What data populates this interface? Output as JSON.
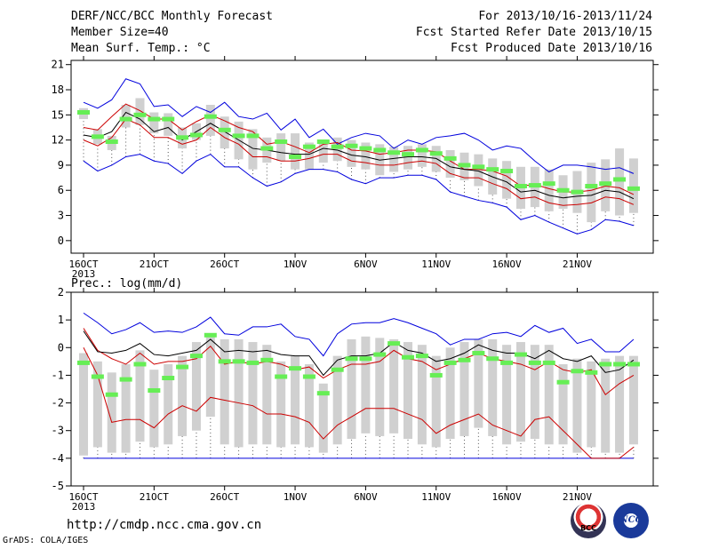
{
  "header": {
    "title": "DERF/NCC/BCC Monthly Forecast",
    "member_size": "Member Size=40",
    "variable_top": "Mean Surf. Temp.: °C",
    "forecast_range": "For 2013/10/16-2013/11/24",
    "started_date": "Fcst Started Refer Date 2013/10/15",
    "produced_date": "Fcst Produced Date 2013/10/16"
  },
  "variable_bottom": "Prec.: log(mm/d)",
  "footer": {
    "url": "http://cmdp.ncc.cma.gov.cn",
    "credit": "GrADS: COLA/IGES",
    "logo1_text": "BCC",
    "logo2_text": "NCC"
  },
  "colors": {
    "max_min": "#0000dd",
    "spread": "#cc0000",
    "mean": "#000000",
    "median": "#66ee55",
    "box": "#d0d0d0"
  },
  "x_ticks": [
    "16OCT",
    "21OCT",
    "26OCT",
    "1NOV",
    "6NOV",
    "11NOV",
    "16NOV",
    "21NOV"
  ],
  "x_sub": "2013",
  "chart_data": [
    {
      "type": "line",
      "title": "Mean Surf. Temp.: °C",
      "ylim": [
        -1.5,
        21.5
      ],
      "yticks": [
        0,
        3,
        6,
        9,
        12,
        15,
        18,
        21
      ],
      "days": 40,
      "series": [
        {
          "key": "max",
          "values": [
            16.5,
            15.8,
            16.8,
            19.3,
            18.7,
            16,
            16.2,
            14.8,
            16,
            15.3,
            16.5,
            14.8,
            14.5,
            15.2,
            13.2,
            14.5,
            12.3,
            13.3,
            11.5,
            12.3,
            12.8,
            12.5,
            11,
            12,
            11.5,
            12.3,
            12.5,
            12.8,
            12,
            10.8,
            11.3,
            11,
            9.5,
            8.2,
            9,
            9,
            8.8,
            8.5,
            8.7,
            8
          ]
        },
        {
          "key": "upper",
          "values": [
            13.5,
            13.2,
            14.8,
            16.3,
            15.5,
            14.5,
            14.5,
            13.2,
            14.2,
            15,
            14.3,
            13.5,
            13,
            11.5,
            11.8,
            11.2,
            10.5,
            11.5,
            11.7,
            10.8,
            10.7,
            10.3,
            10.5,
            10.8,
            10.8,
            10.6,
            9.5,
            8.5,
            8.5,
            8.3,
            7.7,
            6.5,
            6.7,
            6.2,
            5.8,
            5.8,
            6,
            6.5,
            6.3,
            5.5
          ]
        },
        {
          "key": "mean",
          "values": [
            12.6,
            12.3,
            13,
            15.3,
            14.5,
            13,
            13.5,
            12,
            13,
            14,
            13,
            12,
            11,
            10.8,
            10.5,
            10.3,
            10.3,
            11,
            10.8,
            10.2,
            10,
            9.6,
            9.8,
            10,
            10,
            9.8,
            8.8,
            8.5,
            8.3,
            7.6,
            7,
            5.8,
            6,
            5.4,
            5.1,
            5.3,
            5.4,
            6,
            5.8,
            5
          ]
        },
        {
          "key": "lower",
          "values": [
            12,
            11.3,
            12.3,
            14.5,
            13.8,
            12.3,
            12.3,
            11.5,
            12,
            13.5,
            12.3,
            11.5,
            10,
            10,
            9.5,
            9.5,
            9.8,
            10.3,
            10.3,
            9.5,
            9.3,
            9,
            9,
            9.3,
            9.5,
            9.2,
            8,
            7.5,
            7.5,
            6.8,
            6.2,
            5,
            5.2,
            4.5,
            4.2,
            4.3,
            4.5,
            5.2,
            5,
            4.3
          ]
        },
        {
          "key": "min",
          "values": [
            9.5,
            8.3,
            9,
            10,
            10.3,
            9.5,
            9.2,
            8,
            9.5,
            10.3,
            8.8,
            8.8,
            7.5,
            6.5,
            7,
            8,
            8.5,
            8.5,
            8.2,
            7.3,
            6.8,
            7.5,
            7.5,
            7.8,
            7.8,
            7.3,
            5.8,
            5.3,
            4.8,
            4.5,
            4,
            2.5,
            3,
            2.2,
            1.5,
            0.8,
            1.3,
            2.5,
            2.3,
            1.8
          ]
        },
        {
          "key": "median",
          "values": [
            15.3,
            12.4,
            11.8,
            14.5,
            15,
            14.5,
            14.5,
            12.3,
            12.6,
            14.8,
            13.2,
            12.5,
            12.5,
            11,
            11.8,
            10,
            11.2,
            11.8,
            11.2,
            11.3,
            11,
            10.8,
            10.5,
            10.3,
            10.8,
            10.4,
            9.8,
            9,
            8.8,
            8.5,
            8.3,
            6.5,
            6.6,
            6.8,
            6,
            5.8,
            6.5,
            6.8,
            7.3,
            6.2
          ]
        },
        {
          "key": "box_low",
          "values": [
            14.5,
            11.5,
            10.8,
            13.5,
            13.8,
            12.8,
            12.5,
            11,
            12,
            12.5,
            11,
            9.7,
            8.5,
            9.3,
            9.5,
            8.5,
            8.5,
            9.3,
            9.5,
            8.8,
            8.5,
            7.8,
            8.2,
            8.5,
            8.8,
            8.2,
            7.5,
            7.2,
            6.5,
            5.5,
            5,
            3.8,
            4,
            3.5,
            3.8,
            3.3,
            2.2,
            3.5,
            3,
            3.3
          ]
        },
        {
          "key": "box_high",
          "values": [
            15.8,
            13.3,
            12.5,
            16.2,
            17,
            15.3,
            15.2,
            13.5,
            14,
            16.2,
            14.8,
            14.2,
            13.3,
            12.3,
            12.8,
            12.8,
            11.7,
            12,
            12.3,
            12,
            11.7,
            11.5,
            11.2,
            11.3,
            11.5,
            11.3,
            10.8,
            10.5,
            10.3,
            9.8,
            9.5,
            8.8,
            8.8,
            8.5,
            7.8,
            8.3,
            9.3,
            9.7,
            11,
            9.8
          ]
        }
      ]
    },
    {
      "type": "line",
      "title": "Prec.: log(mm/d)",
      "ylim": [
        -5,
        2
      ],
      "yticks": [
        -5,
        -4,
        -3,
        -2,
        -1,
        0,
        1,
        2
      ],
      "days": 40,
      "series": [
        {
          "key": "max",
          "values": [
            1.25,
            0.9,
            0.5,
            0.65,
            0.9,
            0.55,
            0.6,
            0.55,
            0.75,
            1.1,
            0.5,
            0.45,
            0.75,
            0.75,
            0.85,
            0.4,
            0.3,
            -0.3,
            0.5,
            0.85,
            0.9,
            0.9,
            1.05,
            0.9,
            0.7,
            0.5,
            0.1,
            0.3,
            0.3,
            0.5,
            0.55,
            0.4,
            0.8,
            0.55,
            0.7,
            0.15,
            0.3,
            -0.15,
            -0.15,
            0.3
          ]
        },
        {
          "key": "mean",
          "values": [
            0.6,
            -0.15,
            -0.2,
            -0.1,
            0.15,
            -0.25,
            -0.3,
            -0.2,
            -0.1,
            0.3,
            -0.15,
            -0.1,
            -0.15,
            -0.1,
            -0.25,
            -0.3,
            -0.3,
            -1,
            -0.45,
            -0.3,
            -0.3,
            -0.2,
            0.2,
            -0.1,
            -0.2,
            -0.5,
            -0.4,
            -0.2,
            0.1,
            -0.1,
            -0.2,
            -0.2,
            -0.4,
            -0.1,
            -0.4,
            -0.5,
            -0.3,
            -0.9,
            -0.8,
            -0.45
          ]
        },
        {
          "key": "upper",
          "values": [
            0.7,
            -0.1,
            -0.4,
            -0.6,
            -0.2,
            -0.6,
            -0.5,
            -0.5,
            -0.4,
            0.05,
            -0.6,
            -0.5,
            -0.6,
            -0.5,
            -0.6,
            -0.8,
            -0.7,
            -1.1,
            -0.8,
            -0.6,
            -0.6,
            -0.5,
            -0.1,
            -0.4,
            -0.5,
            -0.8,
            -0.6,
            -0.4,
            -0.2,
            -0.4,
            -0.5,
            -0.6,
            -0.8,
            -0.5,
            -0.8,
            -0.9,
            -0.8,
            -1.7,
            -1.3,
            -1
          ]
        },
        {
          "key": "lower",
          "values": [
            0,
            -1,
            -2.7,
            -2.6,
            -2.6,
            -2.9,
            -2.4,
            -2.1,
            -2.3,
            -1.8,
            -1.9,
            -2,
            -2.1,
            -2.4,
            -2.4,
            -2.5,
            -2.7,
            -3.3,
            -2.8,
            -2.5,
            -2.2,
            -2.2,
            -2.2,
            -2.4,
            -2.6,
            -3.1,
            -2.8,
            -2.6,
            -2.4,
            -2.8,
            -3,
            -3.2,
            -2.6,
            -2.5,
            -3,
            -3.5,
            -4,
            -4,
            -4,
            -3.6
          ]
        },
        {
          "key": "min",
          "values": [
            -4,
            -4,
            -4,
            -4,
            -4,
            -4,
            -4,
            -4,
            -4,
            -4,
            -4,
            -4,
            -4,
            -4,
            -4,
            -4,
            -4,
            -4,
            -4,
            -4,
            -4,
            -4,
            -4,
            -4,
            -4,
            -4,
            -4,
            -4,
            -4,
            -4,
            -4,
            -4,
            -4,
            -4,
            -4,
            -4,
            -4,
            -4,
            -4,
            -4
          ]
        },
        {
          "key": "median",
          "values": [
            -0.55,
            -1.05,
            -1.7,
            -1.15,
            -0.6,
            -1.55,
            -1.1,
            -0.7,
            -0.3,
            0.45,
            -0.5,
            -0.5,
            -0.55,
            -0.45,
            -1.05,
            -0.75,
            -1.05,
            -1.65,
            -0.8,
            -0.4,
            -0.4,
            -0.25,
            0.15,
            -0.35,
            -0.3,
            -1,
            -0.55,
            -0.45,
            -0.2,
            -0.4,
            -0.55,
            -0.25,
            -0.55,
            -0.55,
            -1.25,
            -0.85,
            -0.9,
            -0.6,
            -0.6,
            -0.6
          ]
        },
        {
          "key": "box_low",
          "values": [
            -3.9,
            -3.6,
            -3.8,
            -3.8,
            -3.4,
            -3.6,
            -3.5,
            -3.2,
            -3,
            -2.5,
            -3.5,
            -3.6,
            -3.5,
            -3.5,
            -3.6,
            -3.5,
            -3.6,
            -3.8,
            -3.5,
            -3.3,
            -3.1,
            -3.2,
            -3.1,
            -3.3,
            -3.5,
            -3.6,
            -3.3,
            -3.2,
            -2.9,
            -3.2,
            -3.5,
            -3.4,
            -3.3,
            -3.5,
            -3.5,
            -3.8,
            -3.6,
            -3.8,
            -3.8,
            -3.5
          ]
        },
        {
          "key": "box_high",
          "values": [
            -0.2,
            -0.5,
            -0.9,
            -0.6,
            -0.1,
            -0.8,
            -0.6,
            -0.3,
            0.2,
            0.5,
            0.3,
            0.3,
            0.2,
            0.1,
            -0.5,
            -0.3,
            -0.6,
            -1.3,
            -0.3,
            0.3,
            0.4,
            0.35,
            0.3,
            0.2,
            0.1,
            -0.3,
            0,
            0.2,
            0.3,
            0.3,
            0.1,
            0.2,
            0.1,
            0.1,
            -0.6,
            -0.4,
            -0.5,
            -0.4,
            -0.3,
            -0.3
          ]
        }
      ]
    }
  ]
}
